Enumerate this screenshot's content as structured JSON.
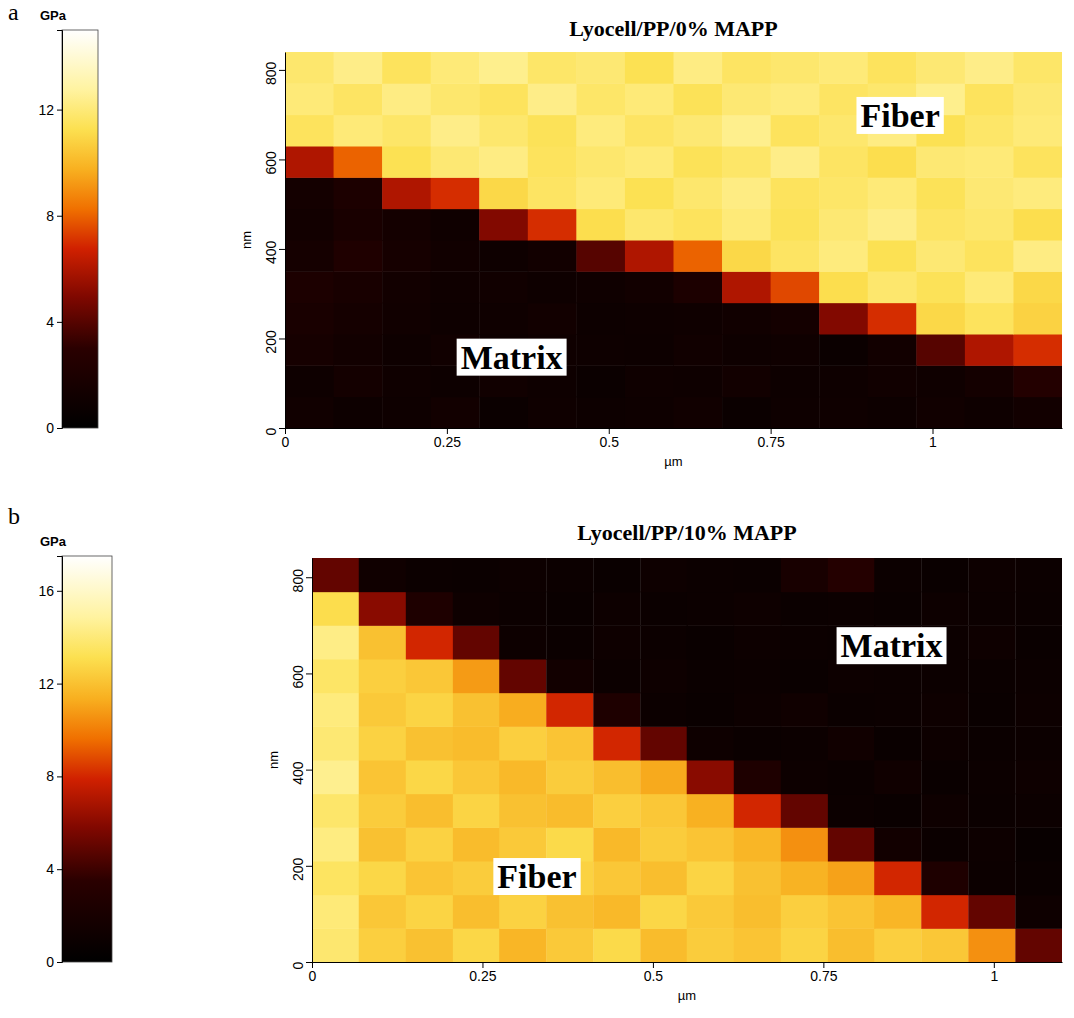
{
  "chart_data": [
    {
      "type": "heatmap",
      "panel": "a",
      "title": "Lyocell/PP/0% MAPP",
      "x_label": "µm",
      "y_label": "nm",
      "xlim": [
        0,
        1.2
      ],
      "xticks": [
        0,
        0.25,
        0.5,
        0.75,
        1
      ],
      "ylim": [
        0,
        840
      ],
      "yticks": [
        0,
        200,
        400,
        600,
        800
      ],
      "x": [
        0.0375,
        0.1125,
        0.1875,
        0.2625,
        0.3375,
        0.4125,
        0.4875,
        0.5625,
        0.6375,
        0.7125,
        0.7875,
        0.8625,
        0.9375,
        1.0125,
        1.0875,
        1.1625
      ],
      "y": [
        35,
        105,
        175,
        245,
        315,
        385,
        455,
        525,
        595,
        665,
        735,
        805
      ],
      "z": [
        [
          1.2,
          0.9,
          1.0,
          1.3,
          0.8,
          1.1,
          0.9,
          1.0,
          1.2,
          0.8,
          1.0,
          1.1,
          0.9,
          1.2,
          1.0,
          1.3
        ],
        [
          1.0,
          1.4,
          1.1,
          0.9,
          1.2,
          1.0,
          0.8,
          1.1,
          1.0,
          1.3,
          0.9,
          1.0,
          1.2,
          1.1,
          1.4,
          2.5
        ],
        [
          1.6,
          1.3,
          1.0,
          1.2,
          0.9,
          1.1,
          1.0,
          0.9,
          1.2,
          1.0,
          1.1,
          0.8,
          1.3,
          4.0,
          6.0,
          7.0
        ],
        [
          1.8,
          1.5,
          1.2,
          1.0,
          1.1,
          1.3,
          0.9,
          1.0,
          1.1,
          1.2,
          1.4,
          5.0,
          7.0,
          11.0,
          11.5,
          10.8
        ],
        [
          2.0,
          1.7,
          1.3,
          1.1,
          1.2,
          1.0,
          1.1,
          1.3,
          2.0,
          6.0,
          7.5,
          11.2,
          11.8,
          11.4,
          12.0,
          11.0
        ],
        [
          1.5,
          2.2,
          1.6,
          1.2,
          1.0,
          1.3,
          4.0,
          6.0,
          8.0,
          11.0,
          11.6,
          12.1,
          11.3,
          11.9,
          11.5,
          12.2
        ],
        [
          1.3,
          1.8,
          1.4,
          1.1,
          5.0,
          7.0,
          11.2,
          11.8,
          11.5,
          12.0,
          11.4,
          11.9,
          12.3,
          11.6,
          11.8,
          11.2
        ],
        [
          1.4,
          2.0,
          6.0,
          7.0,
          11.0,
          11.6,
          12.0,
          11.3,
          11.8,
          12.2,
          11.5,
          11.7,
          12.0,
          11.4,
          11.9,
          12.1
        ],
        [
          6.0,
          8.0,
          11.3,
          11.9,
          12.2,
          11.5,
          11.8,
          12.0,
          11.4,
          11.7,
          12.3,
          11.6,
          11.2,
          11.9,
          12.0,
          11.5
        ],
        [
          11.5,
          12.0,
          11.7,
          12.3,
          11.8,
          11.4,
          12.1,
          11.6,
          11.9,
          12.4,
          11.5,
          11.8,
          12.2,
          11.3,
          11.7,
          12.0
        ],
        [
          12.0,
          11.6,
          12.2,
          11.8,
          11.5,
          12.3,
          11.7,
          12.0,
          11.4,
          11.9,
          12.1,
          11.6,
          11.8,
          12.4,
          11.5,
          11.9
        ],
        [
          11.8,
          12.3,
          11.5,
          12.0,
          12.4,
          11.7,
          11.9,
          11.3,
          12.2,
          11.6,
          11.8,
          12.0,
          11.5,
          11.9,
          12.3,
          11.7
        ]
      ],
      "colorbar": {
        "label": "GPa",
        "range": [
          0,
          15
        ],
        "ticks": [
          0,
          4,
          8,
          12
        ]
      },
      "annotations": [
        {
          "text": "Fiber",
          "x": 0.95,
          "y": 690
        },
        {
          "text": "Matrix",
          "x": 0.35,
          "y": 150
        }
      ]
    },
    {
      "type": "heatmap",
      "panel": "b",
      "title": "Lyocell/PP/10% MAPP",
      "x_label": "µm",
      "y_label": "nm",
      "xlim": [
        0,
        1.1
      ],
      "xticks": [
        0,
        0.25,
        0.5,
        0.75,
        1
      ],
      "ylim": [
        0,
        840
      ],
      "yticks": [
        0,
        200,
        400,
        600,
        800
      ],
      "x": [
        0.034,
        0.103,
        0.172,
        0.241,
        0.309,
        0.378,
        0.447,
        0.516,
        0.584,
        0.653,
        0.722,
        0.791,
        0.859,
        0.928,
        0.997,
        1.066
      ],
      "y": [
        35,
        105,
        175,
        245,
        315,
        385,
        455,
        525,
        595,
        665,
        735,
        805
      ],
      "z": [
        [
          13.8,
          12.5,
          12.0,
          12.8,
          11.6,
          12.3,
          12.9,
          11.8,
          12.4,
          12.1,
          12.7,
          11.9,
          12.5,
          12.2,
          10.5,
          5.0
        ],
        [
          14.0,
          12.2,
          12.7,
          11.9,
          12.6,
          12.0,
          11.7,
          12.8,
          12.3,
          11.9,
          12.5,
          12.1,
          11.6,
          8.0,
          5.0,
          1.2
        ],
        [
          13.5,
          12.8,
          12.1,
          12.4,
          11.8,
          12.6,
          12.2,
          11.9,
          12.7,
          12.0,
          11.5,
          11.0,
          8.0,
          2.5,
          1.0,
          0.8
        ],
        [
          14.2,
          12.0,
          12.6,
          11.8,
          12.3,
          12.9,
          11.7,
          12.4,
          12.1,
          11.6,
          10.5,
          5.0,
          1.5,
          0.9,
          1.1,
          0.7
        ],
        [
          13.7,
          12.4,
          11.9,
          12.7,
          12.0,
          11.8,
          12.5,
          12.2,
          11.4,
          8.0,
          5.0,
          1.0,
          0.8,
          1.2,
          0.9,
          1.0
        ],
        [
          14.5,
          12.1,
          12.8,
          12.2,
          11.7,
          12.4,
          11.9,
          11.2,
          6.0,
          2.5,
          1.1,
          0.9,
          1.3,
          0.8,
          1.0,
          1.2
        ],
        [
          13.9,
          12.6,
          12.0,
          11.8,
          12.5,
          12.1,
          8.0,
          5.0,
          1.2,
          0.9,
          1.0,
          1.4,
          0.8,
          1.1,
          0.9,
          1.0
        ],
        [
          14.1,
          12.3,
          12.7,
          12.0,
          11.3,
          8.0,
          2.5,
          1.0,
          0.8,
          1.1,
          1.3,
          0.9,
          1.0,
          1.2,
          0.8,
          1.1
        ],
        [
          13.6,
          12.5,
          12.2,
          10.8,
          5.0,
          1.5,
          1.0,
          1.2,
          0.9,
          1.0,
          0.8,
          1.1,
          1.0,
          1.0,
          0.9,
          1.0
        ],
        [
          14.3,
          12.0,
          8.0,
          5.0,
          1.1,
          0.9,
          1.2,
          1.0,
          0.8,
          1.1,
          1.0,
          0.9,
          1.3,
          1.0,
          1.2,
          0.8
        ],
        [
          13.0,
          6.0,
          2.5,
          1.2,
          1.0,
          0.8,
          1.1,
          0.9,
          1.0,
          1.2,
          0.9,
          1.0,
          0.8,
          1.1,
          1.0,
          0.9
        ],
        [
          5.0,
          1.3,
          1.0,
          0.9,
          1.1,
          1.0,
          0.8,
          1.2,
          1.0,
          0.9,
          2.0,
          3.0,
          1.0,
          0.8,
          1.1,
          1.0
        ]
      ],
      "colorbar": {
        "label": "GPa",
        "range": [
          0,
          17.5
        ],
        "ticks": [
          0,
          4,
          8,
          12,
          16
        ]
      },
      "annotations": [
        {
          "text": "Matrix",
          "x": 0.85,
          "y": 650
        },
        {
          "text": "Fiber",
          "x": 0.33,
          "y": 170
        }
      ]
    }
  ]
}
